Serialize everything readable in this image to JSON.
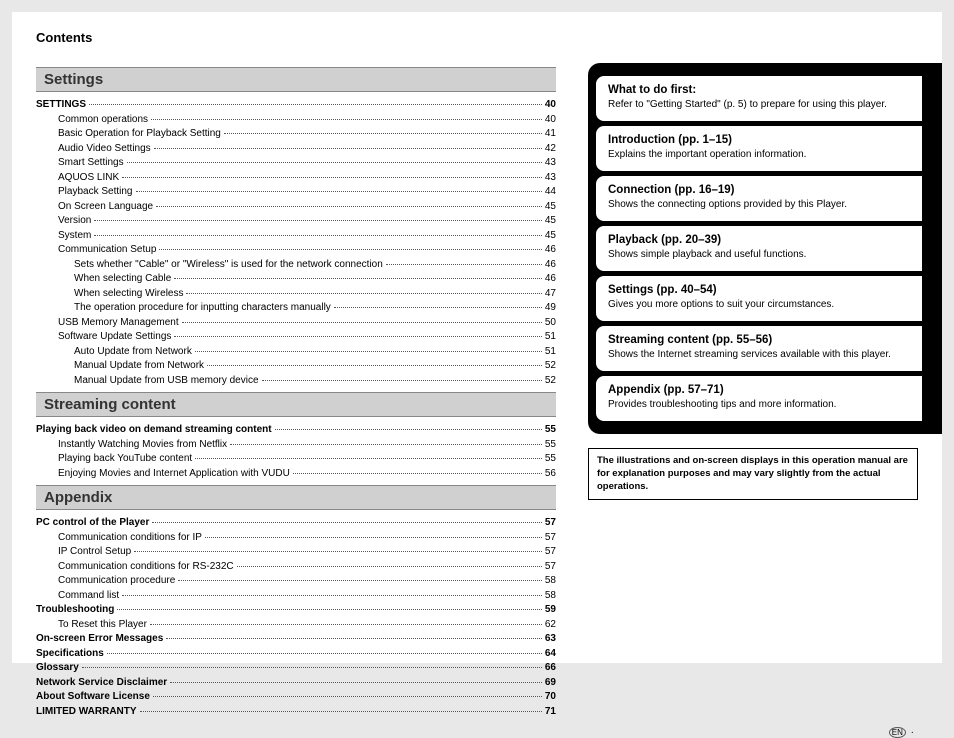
{
  "header": "Contents",
  "toc": {
    "sections": [
      {
        "heading": "Settings",
        "rows": [
          {
            "label": "SETTINGS",
            "page": "40",
            "bold": true,
            "indent": 0
          },
          {
            "label": "Common operations",
            "page": "40",
            "indent": 1
          },
          {
            "label": "Basic Operation for Playback Setting",
            "page": "41",
            "indent": 1
          },
          {
            "label": "Audio Video Settings",
            "page": "42",
            "indent": 1
          },
          {
            "label": "Smart Settings",
            "page": "43",
            "indent": 1
          },
          {
            "label": "AQUOS LINK",
            "page": "43",
            "indent": 1
          },
          {
            "label": "Playback Setting",
            "page": "44",
            "indent": 1
          },
          {
            "label": "On Screen Language",
            "page": "45",
            "indent": 1
          },
          {
            "label": "Version",
            "page": "45",
            "indent": 1
          },
          {
            "label": "System",
            "page": "45",
            "indent": 1
          },
          {
            "label": "Communication Setup",
            "page": "46",
            "indent": 1
          },
          {
            "label": "Sets whether \"Cable\" or \"Wireless\" is used for the network connection",
            "page": "46",
            "indent": 2
          },
          {
            "label": "When selecting Cable",
            "page": "46",
            "indent": 2
          },
          {
            "label": "When selecting Wireless",
            "page": "47",
            "indent": 2
          },
          {
            "label": "The operation procedure for inputting characters manually",
            "page": "49",
            "indent": 2
          },
          {
            "label": "USB Memory Management",
            "page": "50",
            "indent": 1
          },
          {
            "label": "Software Update Settings",
            "page": "51",
            "indent": 1
          },
          {
            "label": "Auto Update from Network",
            "page": "51",
            "indent": 2
          },
          {
            "label": "Manual Update from Network",
            "page": "52",
            "indent": 2
          },
          {
            "label": "Manual Update from USB memory device",
            "page": "52",
            "indent": 2
          }
        ]
      },
      {
        "heading": "Streaming content",
        "rows": [
          {
            "label": "Playing back video on demand streaming content",
            "page": "55",
            "bold": true,
            "indent": 0
          },
          {
            "label": "Instantly Watching Movies from Netflix",
            "page": "55",
            "indent": 1
          },
          {
            "label": "Playing back YouTube content",
            "page": "55",
            "indent": 1
          },
          {
            "label": "Enjoying Movies and Internet Application with VUDU",
            "page": "56",
            "indent": 1
          }
        ]
      },
      {
        "heading": "Appendix",
        "rows": [
          {
            "label": "PC control of the Player",
            "page": "57",
            "bold": true,
            "indent": 0
          },
          {
            "label": "Communication conditions for IP",
            "page": "57",
            "indent": 1
          },
          {
            "label": "IP Control Setup",
            "page": "57",
            "indent": 1
          },
          {
            "label": "Communication conditions for RS-232C",
            "page": "57",
            "indent": 1
          },
          {
            "label": "Communication procedure",
            "page": "58",
            "indent": 1
          },
          {
            "label": "Command list",
            "page": "58",
            "indent": 1
          },
          {
            "label": "Troubleshooting",
            "page": "59",
            "bold": true,
            "indent": 0
          },
          {
            "label": "To Reset this Player",
            "page": "62",
            "indent": 1
          },
          {
            "label": "On-screen Error Messages",
            "page": "63",
            "bold": true,
            "indent": 0
          },
          {
            "label": "Specifications",
            "page": "64",
            "bold": true,
            "indent": 0
          },
          {
            "label": "Glossary",
            "page": "66",
            "bold": true,
            "indent": 0
          },
          {
            "label": "Network Service Disclaimer",
            "page": "69",
            "bold": true,
            "indent": 0
          },
          {
            "label": "About Software License",
            "page": "70",
            "bold": true,
            "indent": 0
          },
          {
            "label": "LIMITED WARRANTY",
            "page": "71",
            "bold": true,
            "indent": 0
          }
        ]
      }
    ]
  },
  "tabs": [
    {
      "title": "What to do first:",
      "desc": "Refer to \"Getting Started\" (p. 5) to prepare for using this player.",
      "marker": false
    },
    {
      "title": "Introduction (pp. 1–15)",
      "desc": "Explains the important operation information.",
      "marker": true
    },
    {
      "title": "Connection (pp. 16–19)",
      "desc": "Shows the connecting options provided by this Player.",
      "marker": true
    },
    {
      "title": "Playback (pp. 20–39)",
      "desc": "Shows simple playback and useful functions.",
      "marker": true
    },
    {
      "title": "Settings (pp. 40–54)",
      "desc": "Gives you more options to suit your circumstances.",
      "marker": true
    },
    {
      "title": "Streaming content (pp. 55–56)",
      "desc": "Shows the Internet streaming services available with this player.",
      "marker": true
    },
    {
      "title": "Appendix (pp. 57–71)",
      "desc": "Provides troubleshooting tips and more information.",
      "marker": true
    }
  ],
  "note": "The illustrations and on-screen displays in this operation manual are for explanation purposes and may vary slightly from the actual operations.",
  "footer_mark": "EN",
  "footer_dash": " · "
}
